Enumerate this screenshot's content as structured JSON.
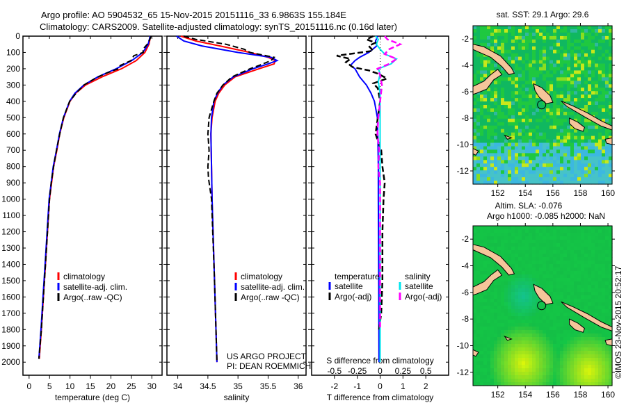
{
  "title_line1": "Argo profile: AO 5904532_65 15-Nov-2015 20151116_33 6.9863S 155.184E",
  "title_line2": "Climatology: CARS2009. Satellite-adjusted climatology: synTS_20151116.nc (0.16d later)",
  "colors": {
    "climatology": "#ff0000",
    "satellite": "#0000ff",
    "argo": "#000000",
    "sal_satellite": "#00e5ee",
    "sal_argo": "#ff00ff"
  },
  "chart_data": [
    {
      "type": "line",
      "name": "temperature",
      "xlabel": "temperature (deg C)",
      "xlim": [
        -1.5,
        32.5
      ],
      "ylim": [
        0,
        2080
      ],
      "xticks": [
        "0",
        "5",
        "10",
        "15",
        "20",
        "25",
        "30"
      ],
      "xtick_values": [
        0,
        5,
        10,
        15,
        20,
        25,
        30
      ],
      "yticks": [
        "0",
        "100",
        "200",
        "300",
        "400",
        "500",
        "600",
        "700",
        "800",
        "900",
        "1000",
        "1100",
        "1200",
        "1300",
        "1400",
        "1500",
        "1600",
        "1700",
        "1800",
        "1900",
        "2000"
      ],
      "legend": [
        "climatology",
        "satellite-adj. clim.",
        "Argo(..raw -QC)"
      ],
      "series": [
        {
          "name": "climatology",
          "depth": [
            0,
            50,
            100,
            150,
            200,
            250,
            300,
            350,
            400,
            500,
            600,
            700,
            800,
            900,
            1000,
            1200,
            1400,
            1600,
            1800,
            1980
          ],
          "values": [
            29.7,
            29.3,
            28.3,
            26.2,
            22.6,
            17.8,
            13.8,
            11.4,
            10.0,
            8.5,
            7.5,
            6.8,
            6.0,
            5.5,
            5.0,
            4.5,
            4.0,
            3.5,
            3.0,
            2.5
          ]
        },
        {
          "name": "satellite",
          "depth": [
            0,
            50,
            100,
            150,
            200,
            250,
            300,
            350,
            400,
            500,
            600,
            700,
            800,
            900,
            1000,
            1200,
            1400,
            1600,
            1800,
            1980
          ],
          "values": [
            29.6,
            29.1,
            27.8,
            25.1,
            21.3,
            16.8,
            13.4,
            11.2,
            9.9,
            8.4,
            7.4,
            6.7,
            5.9,
            5.4,
            4.9,
            4.4,
            3.9,
            3.4,
            2.9,
            2.4
          ]
        },
        {
          "name": "Argo",
          "depth": [
            0,
            20,
            50,
            80,
            100,
            120,
            150,
            180,
            200,
            230,
            260,
            300,
            350,
            400,
            500,
            600,
            700,
            800,
            900,
            1000,
            1200,
            1400,
            1600,
            1800,
            1980
          ],
          "values": [
            29.8,
            29.5,
            28.9,
            27.8,
            27.9,
            25.6,
            24.9,
            22.3,
            21.8,
            18.6,
            16.1,
            13.4,
            11.5,
            9.9,
            8.4,
            7.5,
            6.7,
            6.0,
            5.4,
            5.0,
            4.5,
            4.0,
            3.5,
            3.0,
            2.4
          ]
        }
      ]
    },
    {
      "type": "line",
      "name": "salinity",
      "xlabel": "salinity",
      "xlim": [
        33.82,
        36.13
      ],
      "ylim": [
        0,
        2080
      ],
      "xticks": [
        "34",
        "34.5",
        "35",
        "35.5",
        "36"
      ],
      "xtick_values": [
        34,
        34.5,
        35,
        35.5,
        36
      ],
      "legend": [
        "climatology",
        "satellite-adj. clim.",
        "Argo(..raw -QC)"
      ],
      "annotation": [
        "US ARGO PROJECT",
        "PI: DEAN ROEMMICH"
      ],
      "series": [
        {
          "name": "climatology",
          "depth": [
            0,
            30,
            60,
            100,
            130,
            150,
            170,
            200,
            250,
            300,
            350,
            400,
            500,
            600,
            800,
            1000,
            1500,
            2000
          ],
          "values": [
            34.05,
            34.3,
            34.7,
            35.2,
            35.5,
            35.62,
            35.6,
            35.35,
            34.95,
            34.78,
            34.68,
            34.62,
            34.57,
            34.55,
            34.56,
            34.57,
            34.61,
            34.65
          ]
        },
        {
          "name": "satellite",
          "depth": [
            0,
            30,
            60,
            100,
            130,
            150,
            170,
            200,
            250,
            300,
            350,
            400,
            500,
            600,
            800,
            1000,
            1500,
            2000
          ],
          "values": [
            33.98,
            34.1,
            34.4,
            35.0,
            35.55,
            35.65,
            35.5,
            35.25,
            34.92,
            34.75,
            34.66,
            34.6,
            34.56,
            34.55,
            34.56,
            34.57,
            34.61,
            34.65
          ]
        },
        {
          "name": "Argo",
          "depth": [
            0,
            20,
            50,
            80,
            100,
            130,
            150,
            180,
            200,
            250,
            300,
            350,
            400,
            500,
            600,
            700,
            800,
            870,
            1000,
            1500,
            2000
          ],
          "values": [
            34.1,
            34.3,
            34.8,
            35.1,
            35.2,
            35.6,
            35.55,
            35.35,
            35.2,
            34.9,
            34.75,
            34.65,
            34.6,
            34.52,
            34.5,
            34.52,
            34.5,
            34.51,
            34.56,
            34.61,
            34.65
          ]
        }
      ]
    },
    {
      "type": "line",
      "name": "differences",
      "xlabel": "T difference from climatology",
      "x2label": "S difference from climatology",
      "xlim": [
        -3,
        3
      ],
      "x2lim": [
        -0.75,
        0.75
      ],
      "ylim": [
        0,
        2080
      ],
      "xticks": [
        "-2",
        "-1",
        "0",
        "1",
        "2"
      ],
      "xtick_values": [
        -2,
        -1,
        0,
        1,
        2
      ],
      "x2ticks": [
        "-0.5",
        "-0.25",
        "0",
        "0.25",
        "0.5"
      ],
      "x2tick_values": [
        -0.5,
        -0.25,
        0,
        0.25,
        0.5
      ],
      "legend_temperature": {
        "heading": "temperature",
        "items": [
          "satellite",
          "Argo(-adj)"
        ]
      },
      "legend_salinity": {
        "heading": "salinity",
        "items": [
          "satellite",
          "Argo(-adj)"
        ]
      },
      "series": [
        {
          "name": "T satellite",
          "axis": "T",
          "depth": [
            0,
            30,
            60,
            100,
            130,
            150,
            180,
            200,
            250,
            300,
            350,
            400,
            500,
            600,
            800,
            1000,
            1500,
            2000
          ],
          "values": [
            -0.1,
            -0.2,
            -0.15,
            -0.5,
            -0.9,
            -1.1,
            -1.3,
            -1.1,
            -0.9,
            -0.6,
            -0.4,
            -0.25,
            -0.12,
            -0.1,
            -0.08,
            -0.08,
            -0.06,
            -0.05
          ]
        },
        {
          "name": "T Argo",
          "axis": "T",
          "depth": [
            0,
            20,
            40,
            60,
            90,
            120,
            140,
            160,
            190,
            210,
            230,
            260,
            290,
            320,
            400,
            500,
            600,
            700,
            800,
            900,
            1000,
            1200,
            1500,
            1700,
            1800
          ],
          "values": [
            -0.3,
            -0.6,
            -0.2,
            -0.5,
            -0.3,
            -1.9,
            -1.3,
            -1.5,
            -1.2,
            -0.5,
            -0.1,
            0.3,
            -0.3,
            -0.1,
            0.0,
            -0.1,
            -0.2,
            0.05,
            0.1,
            0.2,
            0.15,
            0.1,
            0.1,
            0.05,
            -0.05
          ]
        },
        {
          "name": "S satellite",
          "axis": "S",
          "depth": [
            0,
            20,
            50,
            80,
            110,
            140,
            170,
            200,
            230,
            280,
            350,
            500,
            800,
            1000,
            2000
          ],
          "values": [
            -0.05,
            -0.02,
            -0.04,
            0.0,
            0.05,
            0.18,
            0.12,
            -0.02,
            0.0,
            -0.02,
            0.0,
            0.0,
            0.0,
            0.0,
            0.0
          ]
        },
        {
          "name": "S Argo",
          "axis": "S",
          "depth": [
            0,
            20,
            50,
            80,
            110,
            140,
            170,
            200,
            240,
            300,
            400,
            500,
            600,
            700,
            800,
            900,
            1000,
            1500,
            1800
          ],
          "values": [
            0.05,
            0.08,
            0.22,
            0.1,
            0.05,
            0.18,
            0.1,
            -0.03,
            0.0,
            0.02,
            0.0,
            -0.02,
            -0.03,
            -0.01,
            -0.02,
            0.0,
            0.0,
            0.0,
            0.0
          ]
        }
      ]
    },
    {
      "type": "heatmap",
      "name": "sst-map",
      "title": "sat. SST: 29.1 Argo: 29.6",
      "xlim": [
        150.2,
        160.3
      ],
      "ylim": [
        -13,
        -1
      ],
      "xticks": [
        "152",
        "154",
        "156",
        "158",
        "160"
      ],
      "xtick_values": [
        152,
        154,
        156,
        158,
        160
      ],
      "yticks": [
        "-2",
        "-4",
        "-6",
        "-8",
        "-10",
        "-12"
      ],
      "ytick_values": [
        -2,
        -4,
        -6,
        -8,
        -10,
        -12
      ],
      "argo_location": [
        155.184,
        -6.9863
      ]
    },
    {
      "type": "heatmap",
      "name": "sla-map",
      "title_line1": "Altim. SLA: -0.076",
      "title_line2": "Argo h1000: -0.085 h2000: NaN",
      "xlim": [
        150.2,
        160.3
      ],
      "ylim": [
        -13,
        -1
      ],
      "xticks": [
        "152",
        "154",
        "156",
        "158",
        "160"
      ],
      "xtick_values": [
        152,
        154,
        156,
        158,
        160
      ],
      "yticks": [
        "-2",
        "-4",
        "-6",
        "-8",
        "-10",
        "-12"
      ],
      "ytick_values": [
        -2,
        -4,
        -6,
        -8,
        -10,
        -12
      ],
      "argo_location": [
        155.184,
        -6.9863
      ]
    }
  ],
  "credit": "©IMOS 23-Nov-2015 20:52:17"
}
